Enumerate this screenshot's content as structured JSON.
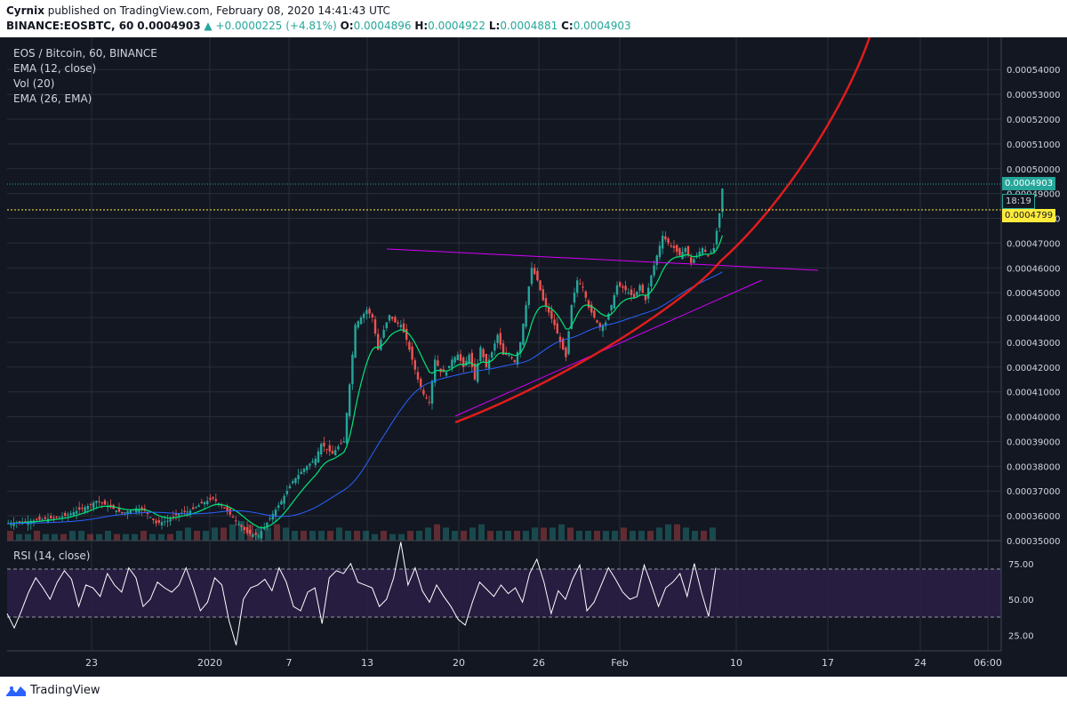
{
  "header": {
    "author": "Cyrnix",
    "published": " published on TradingView.com, February 08, 2020 14:41:43 UTC",
    "symbol": "BINANCE:EOSBTC, 60",
    "last": "0.0004903",
    "change": "▲ +0.0000225 (+4.81%)",
    "o_label": "O:",
    "o": "0.0004896",
    "h_label": "H:",
    "h": "0.0004922",
    "l_label": "L:",
    "l": "0.0004881",
    "c_label": "C:",
    "c": "0.0004903"
  },
  "legend": {
    "title": "EOS / Bitcoin, 60, BINANCE",
    "ema12": "EMA (12, close)",
    "vol": "Vol (20)",
    "ema26": "EMA (26, EMA)",
    "rsi": "RSI (14, close)"
  },
  "price_tags": {
    "last": "0.0004903",
    "countdown": "18:19",
    "line": "0.0004799"
  },
  "footer": {
    "brand": "TradingView"
  },
  "colors": {
    "background": "#131722",
    "grid": "#2a2e39",
    "up": "#26a69a",
    "down": "#ef5350",
    "ema12": "#00e676",
    "ema26": "#2962ff",
    "trendline": "#d500f9",
    "curve": "#e01c1c",
    "hline": "#ffeb3b",
    "rsi_band": "#2a1e46"
  },
  "chart_data": [
    {
      "type": "candlestick",
      "title": "EOS / Bitcoin, 60, BINANCE",
      "xlabel": "",
      "ylabel": "",
      "x_ticks": [
        "23",
        "2020",
        "7",
        "13",
        "20",
        "26",
        "Feb",
        "10",
        "17",
        "24",
        "06:00"
      ],
      "y_ticks": [
        "0.00035000",
        "0.00036000",
        "0.00037000",
        "0.00038000",
        "0.00039000",
        "0.00040000",
        "0.00041000",
        "0.00042000",
        "0.00043000",
        "0.00044000",
        "0.00045000",
        "0.00046000",
        "0.00047000",
        "0.00048000",
        "0.00049000",
        "0.00050000",
        "0.00051000",
        "0.00052000",
        "0.00053000",
        "0.00054000"
      ],
      "ylim": [
        0.00035,
        0.000553
      ],
      "last_price": 0.0004903,
      "hline": 0.0004799,
      "series": [
        {
          "values": [
            [
              0,
              0.000357
            ],
            [
              8,
              0.000358
            ],
            [
              15,
              0.000359
            ],
            [
              20,
              0.00036
            ],
            [
              24,
              0.000362
            ],
            [
              28,
              0.000364
            ],
            [
              31,
              0.000366
            ],
            [
              35,
              0.000364
            ],
            [
              40,
              0.000361
            ],
            [
              45,
              0.000363
            ],
            [
              48,
              0.000362
            ],
            [
              52,
              0.000357
            ],
            [
              56,
              0.000358
            ],
            [
              60,
              0.000361
            ],
            [
              64,
              0.000362
            ],
            [
              68,
              0.000365
            ],
            [
              72,
              0.000367
            ],
            [
              76,
              0.000363
            ],
            [
              80,
              0.000358
            ],
            [
              84,
              0.000353
            ],
            [
              88,
              0.000352
            ],
            [
              92,
              0.000359
            ],
            [
              96,
              0.000366
            ],
            [
              100,
              0.000374
            ],
            [
              104,
              0.000379
            ],
            [
              108,
              0.000383
            ],
            [
              110,
              0.000389
            ],
            [
              114,
              0.000385
            ],
            [
              116,
              0.000388
            ],
            [
              118,
              0.00039
            ],
            [
              120,
              0.000413
            ],
            [
              122,
              0.000437
            ],
            [
              124,
              0.00044
            ],
            [
              126,
              0.000443
            ],
            [
              128,
              0.00044
            ],
            [
              130,
              0.000427
            ],
            [
              132,
              0.000435
            ],
            [
              134,
              0.000441
            ],
            [
              136,
              0.000438
            ],
            [
              138,
              0.000437
            ],
            [
              140,
              0.000431
            ],
            [
              142,
              0.000423
            ],
            [
              144,
              0.000415
            ],
            [
              146,
              0.000409
            ],
            [
              148,
              0.000406
            ],
            [
              150,
              0.000423
            ],
            [
              152,
              0.000418
            ],
            [
              154,
              0.000418
            ],
            [
              156,
              0.000423
            ],
            [
              158,
              0.000425
            ],
            [
              160,
              0.00042
            ],
            [
              162,
              0.000425
            ],
            [
              164,
              0.000415
            ],
            [
              166,
              0.000428
            ],
            [
              168,
              0.00042
            ],
            [
              170,
              0.000426
            ],
            [
              172,
              0.000433
            ],
            [
              174,
              0.000425
            ],
            [
              176,
              0.000425
            ],
            [
              178,
              0.000422
            ],
            [
              180,
              0.00043
            ],
            [
              182,
              0.000445
            ],
            [
              184,
              0.00046
            ],
            [
              186,
              0.000455
            ],
            [
              188,
              0.000447
            ],
            [
              190,
              0.000442
            ],
            [
              192,
              0.000437
            ],
            [
              194,
              0.00043
            ],
            [
              196,
              0.000424
            ],
            [
              198,
              0.000445
            ],
            [
              200,
              0.000455
            ],
            [
              202,
              0.000452
            ],
            [
              204,
              0.000444
            ],
            [
              206,
              0.00044
            ],
            [
              208,
              0.000436
            ],
            [
              210,
              0.000438
            ],
            [
              212,
              0.000445
            ],
            [
              214,
              0.000453
            ],
            [
              216,
              0.000452
            ],
            [
              218,
              0.00045
            ],
            [
              220,
              0.000448
            ],
            [
              222,
              0.000453
            ],
            [
              224,
              0.000447
            ],
            [
              226,
              0.000457
            ],
            [
              228,
              0.000465
            ],
            [
              230,
              0.000473
            ],
            [
              232,
              0.00047
            ],
            [
              234,
              0.000468
            ],
            [
              236,
              0.000465
            ],
            [
              238,
              0.000468
            ],
            [
              240,
              0.000462
            ],
            [
              242,
              0.000465
            ],
            [
              244,
              0.000468
            ],
            [
              246,
              0.000465
            ],
            [
              248,
              0.000468
            ],
            [
              250,
              0.000482
            ],
            [
              251,
              0.000492
            ]
          ]
        },
        {
          "name": "EMA (12, close)",
          "values": []
        },
        {
          "name": "EMA (26, EMA)",
          "values": []
        }
      ]
    },
    {
      "type": "bar",
      "title": "Vol (20)",
      "note_values": "volume bars at bottom of price pane",
      "values": [
        3,
        2,
        2,
        3,
        2,
        2,
        2,
        3,
        3,
        2,
        2,
        3,
        2,
        2,
        2,
        3,
        2,
        2,
        2,
        3,
        4,
        3,
        3,
        4,
        4,
        5,
        6,
        5,
        4,
        4,
        5,
        4,
        3,
        3,
        3,
        3,
        3,
        4,
        3,
        3,
        3,
        2,
        3,
        2,
        2,
        3,
        3,
        4,
        5,
        4,
        3,
        3,
        4,
        5,
        3,
        3,
        3,
        3,
        3,
        4,
        4,
        4,
        5,
        4,
        3,
        3,
        3,
        3,
        3,
        4,
        3,
        3,
        3,
        4,
        5,
        5,
        4,
        3,
        3,
        4
      ]
    },
    {
      "type": "line",
      "title": "RSI (14, close)",
      "y_ticks": [
        "25.00",
        "50.00",
        "75.00"
      ],
      "ylim": [
        14,
        91
      ],
      "bands": [
        30,
        70
      ],
      "values": [
        40,
        30,
        42,
        55,
        65,
        58,
        50,
        62,
        70,
        64,
        45,
        60,
        58,
        52,
        68,
        60,
        55,
        72,
        65,
        45,
        50,
        62,
        58,
        55,
        60,
        72,
        58,
        42,
        48,
        65,
        60,
        35,
        18,
        50,
        58,
        60,
        64,
        56,
        72,
        62,
        45,
        42,
        55,
        58,
        33,
        65,
        70,
        68,
        75,
        62,
        60,
        58,
        45,
        50,
        65,
        90,
        60,
        72,
        56,
        48,
        60,
        52,
        45,
        36,
        32,
        48,
        62,
        57,
        52,
        60,
        54,
        58,
        48,
        68,
        78,
        62,
        40,
        56,
        50,
        64,
        74,
        42,
        48,
        60,
        72,
        64,
        55,
        50,
        52,
        74,
        60,
        45,
        58,
        62,
        68,
        52,
        75,
        55,
        38,
        72
      ]
    }
  ]
}
